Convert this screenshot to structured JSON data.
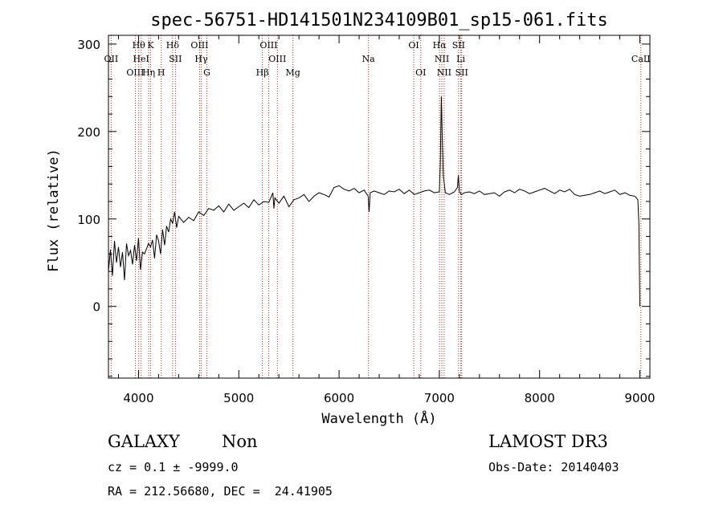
{
  "chart_data": {
    "type": "line",
    "title": "spec-56751-HD141501N234109B01_sp15-061.fits",
    "xlabel": "Wavelength (Å)",
    "ylabel": "Flux (relative)",
    "xlim": [
      3700,
      9100
    ],
    "ylim": [
      -82,
      310
    ],
    "xticks": [
      4000,
      5000,
      6000,
      7000,
      8000,
      9000
    ],
    "yticks": [
      0,
      100,
      200,
      300
    ],
    "line_color": "#000000",
    "marker_color": "#cc2222",
    "spectrum": {
      "name": "flux",
      "x": [
        3700,
        3720,
        3740,
        3760,
        3780,
        3800,
        3820,
        3840,
        3860,
        3880,
        3900,
        3920,
        3940,
        3960,
        3980,
        4000,
        4020,
        4040,
        4060,
        4080,
        4100,
        4120,
        4140,
        4160,
        4180,
        4200,
        4220,
        4240,
        4260,
        4280,
        4300,
        4320,
        4340,
        4360,
        4380,
        4400,
        4450,
        4500,
        4550,
        4600,
        4650,
        4700,
        4750,
        4800,
        4850,
        4900,
        4950,
        5000,
        5050,
        5100,
        5150,
        5200,
        5250,
        5300,
        5340,
        5350,
        5360,
        5400,
        5450,
        5500,
        5550,
        5600,
        5650,
        5700,
        5750,
        5800,
        5850,
        5900,
        5950,
        6000,
        6050,
        6100,
        6150,
        6200,
        6250,
        6290,
        6300,
        6310,
        6350,
        6400,
        6450,
        6500,
        6550,
        6600,
        6650,
        6700,
        6750,
        6800,
        6850,
        6900,
        6950,
        7000,
        7010,
        7020,
        7030,
        7040,
        7050,
        7060,
        7080,
        7100,
        7150,
        7180,
        7190,
        7200,
        7220,
        7250,
        7300,
        7350,
        7400,
        7450,
        7500,
        7550,
        7600,
        7650,
        7700,
        7750,
        7800,
        7850,
        7900,
        7950,
        8000,
        8050,
        8100,
        8150,
        8200,
        8250,
        8300,
        8350,
        8400,
        8450,
        8500,
        8550,
        8600,
        8650,
        8700,
        8750,
        8800,
        8850,
        8900,
        8950,
        8980,
        8990,
        9000
      ],
      "y": [
        40,
        65,
        35,
        75,
        50,
        68,
        45,
        62,
        30,
        72,
        58,
        64,
        48,
        70,
        52,
        78,
        42,
        62,
        60,
        66,
        72,
        68,
        76,
        55,
        82,
        75,
        60,
        88,
        70,
        92,
        85,
        100,
        95,
        108,
        90,
        103,
        96,
        102,
        98,
        108,
        104,
        112,
        110,
        115,
        108,
        117,
        110,
        114,
        118,
        113,
        122,
        116,
        120,
        119,
        130,
        112,
        124,
        118,
        126,
        114,
        122,
        124,
        128,
        120,
        126,
        130,
        128,
        125,
        136,
        138,
        134,
        132,
        135,
        130,
        133,
        126,
        108,
        130,
        132,
        130,
        128,
        132,
        131,
        134,
        129,
        133,
        128,
        130,
        132,
        133,
        130,
        131,
        162,
        240,
        190,
        150,
        140,
        130,
        129,
        128,
        131,
        136,
        150,
        131,
        128,
        130,
        131,
        129,
        132,
        128,
        129,
        130,
        126,
        131,
        133,
        130,
        134,
        132,
        129,
        131,
        133,
        135,
        132,
        129,
        133,
        131,
        134,
        128,
        126,
        127,
        128,
        130,
        132,
        129,
        131,
        133,
        128,
        130,
        127,
        126,
        122,
        95,
        0
      ]
    },
    "lines": [
      {
        "label": "OII",
        "x": 3727,
        "row": 2
      },
      {
        "label": "OIII",
        "x": 3968,
        "row": 3
      },
      {
        "label": "Hθ",
        "x": 4002,
        "row": 1
      },
      {
        "label": "HeI",
        "x": 4026,
        "row": 2
      },
      {
        "label": "Hη",
        "x": 4101,
        "row": 3
      },
      {
        "label": "K",
        "x": 4120,
        "row": 1
      },
      {
        "label": "H",
        "x": 4226,
        "row": 3
      },
      {
        "label": "Hδ",
        "x": 4340,
        "row": 1
      },
      {
        "label": "SII",
        "x": 4368,
        "row": 2
      },
      {
        "label": "OIII",
        "x": 4609,
        "row": 1
      },
      {
        "label": "Hγ",
        "x": 4625,
        "row": 2
      },
      {
        "label": "G",
        "x": 4682,
        "row": 3
      },
      {
        "label": "Hβ",
        "x": 5235,
        "row": 3
      },
      {
        "label": "OIII",
        "x": 5298,
        "row": 1
      },
      {
        "label": "OIII",
        "x": 5385,
        "row": 2
      },
      {
        "label": "Mg",
        "x": 5540,
        "row": 3
      },
      {
        "label": "Na",
        "x": 6293,
        "row": 2
      },
      {
        "label": "OI",
        "x": 6745,
        "row": 1
      },
      {
        "label": "OI",
        "x": 6815,
        "row": 3
      },
      {
        "label": "Hα",
        "x": 7002,
        "row": 1
      },
      {
        "label": "NII",
        "x": 7025,
        "row": 2
      },
      {
        "label": "NII",
        "x": 7048,
        "row": 3
      },
      {
        "label": "SII",
        "x": 7192,
        "row": 1
      },
      {
        "label": "Li",
        "x": 7214,
        "row": 2
      },
      {
        "label": "SII",
        "x": 7223,
        "row": 3
      },
      {
        "label": "CaII",
        "x": 9010,
        "row": 2
      }
    ]
  },
  "info": {
    "object_class": "GALAXY",
    "subclass": "Non",
    "survey": "LAMOST DR3",
    "cz": "cz = 0.1 ± -9999.0",
    "obs_date": "Obs-Date: 20140403",
    "coords": "RA = 212.56680, DEC =  24.41905"
  }
}
